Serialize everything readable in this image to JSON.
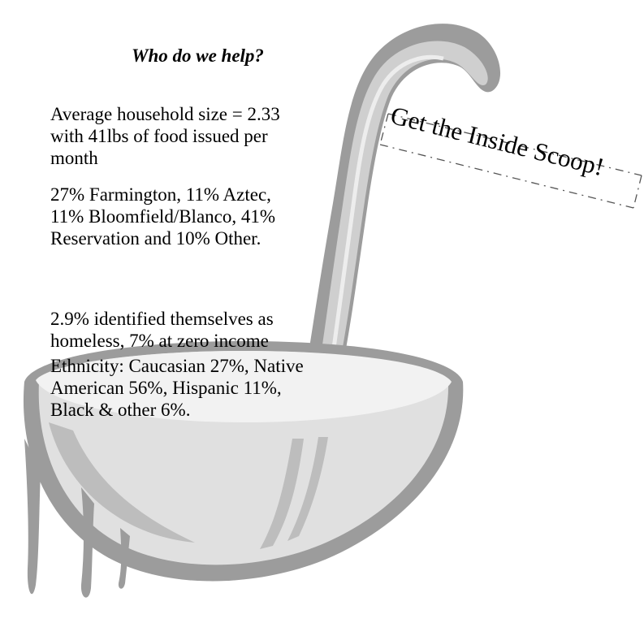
{
  "heading": "Who do we help?",
  "paragraphs": {
    "household": "Average household size = 2.33\nwith 41lbs of food issued per\nmonth",
    "locations": "27% Farmington, 11% Aztec,\n11% Bloomfield/Blanco, 41%\nReservation and 10% Other.",
    "homeless": "2.9% identified themselves as\nhomeless, 7% at zero income",
    "ethnicity": "Ethnicity: Caucasian 27%, Native\nAmerican 56%, Hispanic 11%,\nBlack & other 6%."
  },
  "banner": {
    "text": "Get the Inside Scoop!"
  },
  "colors": {
    "ladle_dark": "#9c9c9c",
    "ladle_mid": "#bdbdbd",
    "ladle_light": "#e3e3e3",
    "text": "#000000"
  }
}
